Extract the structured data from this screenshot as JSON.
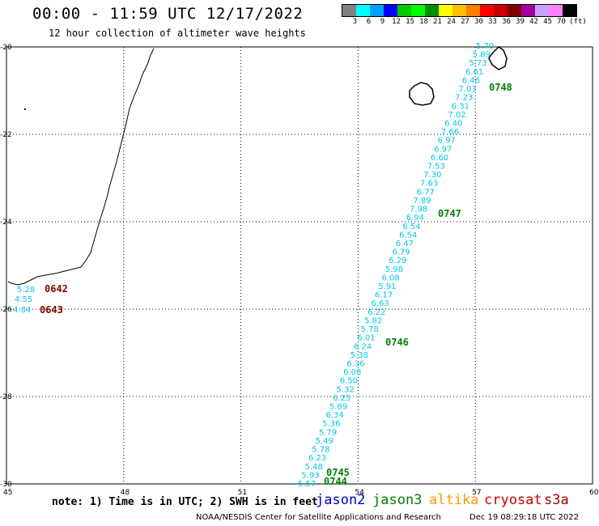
{
  "header": {
    "title": "00:00 - 11:59 UTC 12/17/2022",
    "subtitle": "12 hour collection of altimeter wave heights"
  },
  "colorbar": {
    "labels": [
      "3",
      "6",
      "9",
      "12",
      "15",
      "18",
      "21",
      "24",
      "27",
      "30",
      "33",
      "36",
      "39",
      "42",
      "45",
      "70"
    ],
    "unit": "(ft)",
    "colors": [
      "#808080",
      "#00ffff",
      "#00a0ff",
      "#0000ff",
      "#00c800",
      "#00ff00",
      "#008c00",
      "#ffff00",
      "#ffc000",
      "#ff8000",
      "#ff0000",
      "#c80000",
      "#800000",
      "#a000a0",
      "#c8a0ff",
      "#ff80ff",
      "#000000"
    ]
  },
  "map": {
    "lon_labels": [
      "45",
      "48",
      "51",
      "54",
      "57",
      "60"
    ],
    "lat_labels": [
      "-20",
      "-22",
      "-24",
      "-26",
      "-28",
      "-30"
    ],
    "grid_lons": [
      48,
      51,
      54,
      57
    ],
    "grid_lats": [
      -22,
      -24,
      -26,
      -28
    ],
    "track_color": "#00c8e6",
    "swh_values": [
      "5.70",
      "5.89",
      "5.73",
      "6.61",
      "6.46",
      "7.03",
      "7.23",
      "6.31",
      "7.02",
      "6.40",
      "7.66",
      "6.97",
      "6.97",
      "6.60",
      "7.53",
      "7.30",
      "7.63",
      "6.77",
      "7.89",
      "7.98",
      "6.94",
      "6.54",
      "6.54",
      "6.47",
      "6.79",
      "6.29",
      "5.98",
      "6.08",
      "5.91",
      "6.17",
      "6.63",
      "6.22",
      "5.82",
      "5.78",
      "6.01",
      "6.24",
      "5.38",
      "6.36",
      "6.08",
      "6.50",
      "5.32",
      "6.25",
      "5.89",
      "6.34",
      "5.36",
      "5.79",
      "5.49",
      "5.78",
      "6.23",
      "5.48",
      "5.93",
      "5.57"
    ],
    "time_labels": [
      {
        "text": "0748",
        "color": "#008000"
      },
      {
        "text": "0747",
        "color": "#008000"
      },
      {
        "text": "0746",
        "color": "#008000"
      },
      {
        "text": "0745",
        "color": "#008000"
      },
      {
        "text": "0744",
        "color": "#008000"
      }
    ],
    "madagascar_values": [
      "5.28",
      "4.55",
      "4.84"
    ],
    "madagascar_times": [
      {
        "text": "0642",
        "color": "#800000"
      },
      {
        "text": "0643",
        "color": "#800000"
      }
    ]
  },
  "footer": {
    "note": "note: 1) Time is in UTC; 2) SWH is in feet",
    "satellites": [
      {
        "name": "jason2",
        "color": "#0000c8"
      },
      {
        "name": "jason3",
        "color": "#008000"
      },
      {
        "name": "altika",
        "color": "#ff9900"
      },
      {
        "name": "cryosat",
        "color": "#c80000"
      },
      {
        "name": "s3a",
        "color": "#a00000"
      }
    ],
    "credit": "NOAA/NESDIS Center for Satellite Applications and Research",
    "timestamp": "Dec 19 08:29:18 UTC 2022"
  }
}
